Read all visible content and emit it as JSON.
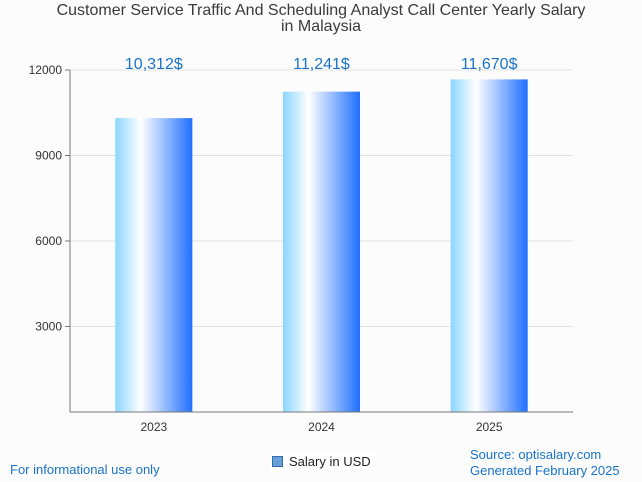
{
  "title_lines": [
    "Customer Service Traffic And Scheduling Analyst Call Center Yearly Salary",
    "in Malaysia"
  ],
  "footer": {
    "left": "For informational use only",
    "source": "Source: optisalary.com",
    "generated": "Generated February 2025"
  },
  "legend": {
    "label": "Salary in USD"
  },
  "colors": {
    "bar_light": "#ffffff",
    "bar_mid": "#8ad6ff",
    "bar_dark": "#1f6fff",
    "label": "#1a73c8"
  },
  "chart_data": {
    "type": "bar",
    "title": "Customer Service Traffic And Scheduling Analyst Call Center Yearly Salary in Malaysia",
    "categories": [
      "2023",
      "2024",
      "2025"
    ],
    "values": [
      10312,
      11241,
      11670
    ],
    "data_labels": [
      "10,312$",
      "11,241$",
      "11,670$"
    ],
    "series": [
      {
        "name": "Salary in USD",
        "values": [
          10312,
          11241,
          11670
        ]
      }
    ],
    "ylim": [
      0,
      12000
    ],
    "yticks": [
      3000,
      6000,
      9000,
      12000
    ],
    "grid": true,
    "legend_position": "bottom"
  }
}
